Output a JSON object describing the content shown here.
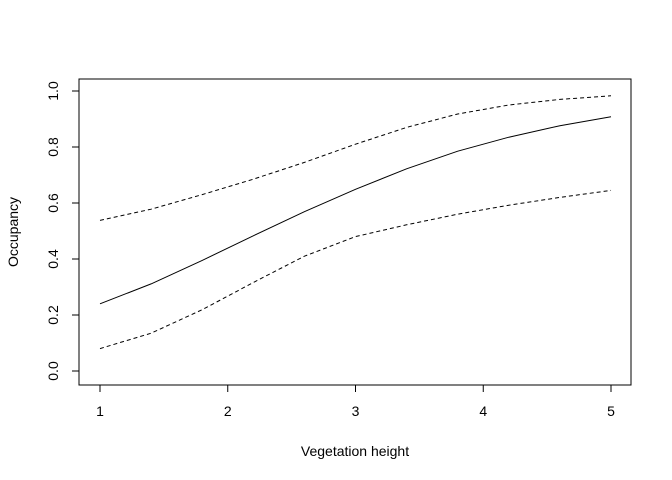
{
  "chart_data": {
    "type": "line",
    "title": "",
    "xlabel": "Vegetation height",
    "ylabel": "Occupancy",
    "xlim": [
      1,
      5
    ],
    "ylim": [
      0,
      1
    ],
    "x_ticks": [
      "1",
      "2",
      "3",
      "4",
      "5"
    ],
    "y_ticks": [
      "0.0",
      "0.2",
      "0.4",
      "0.6",
      "0.8",
      "1.0"
    ],
    "grid": false,
    "legend": "none",
    "x": [
      1.0,
      1.4,
      1.8,
      2.2,
      2.6,
      3.0,
      3.4,
      3.8,
      4.2,
      4.6,
      5.0
    ],
    "series": [
      {
        "values": [
          0.24,
          0.311,
          0.395,
          0.483,
          0.569,
          0.649,
          0.722,
          0.785,
          0.835,
          0.876,
          0.908
        ],
        "style": "solid",
        "color": "#000000"
      },
      {
        "values": [
          0.08,
          0.135,
          0.219,
          0.316,
          0.41,
          0.48,
          0.522,
          0.56,
          0.592,
          0.62,
          0.645
        ],
        "style": "dashed",
        "color": "#000000"
      },
      {
        "values": [
          0.538,
          0.578,
          0.63,
          0.685,
          0.745,
          0.81,
          0.87,
          0.918,
          0.95,
          0.97,
          0.983
        ],
        "style": "dashed",
        "color": "#000000"
      }
    ]
  }
}
